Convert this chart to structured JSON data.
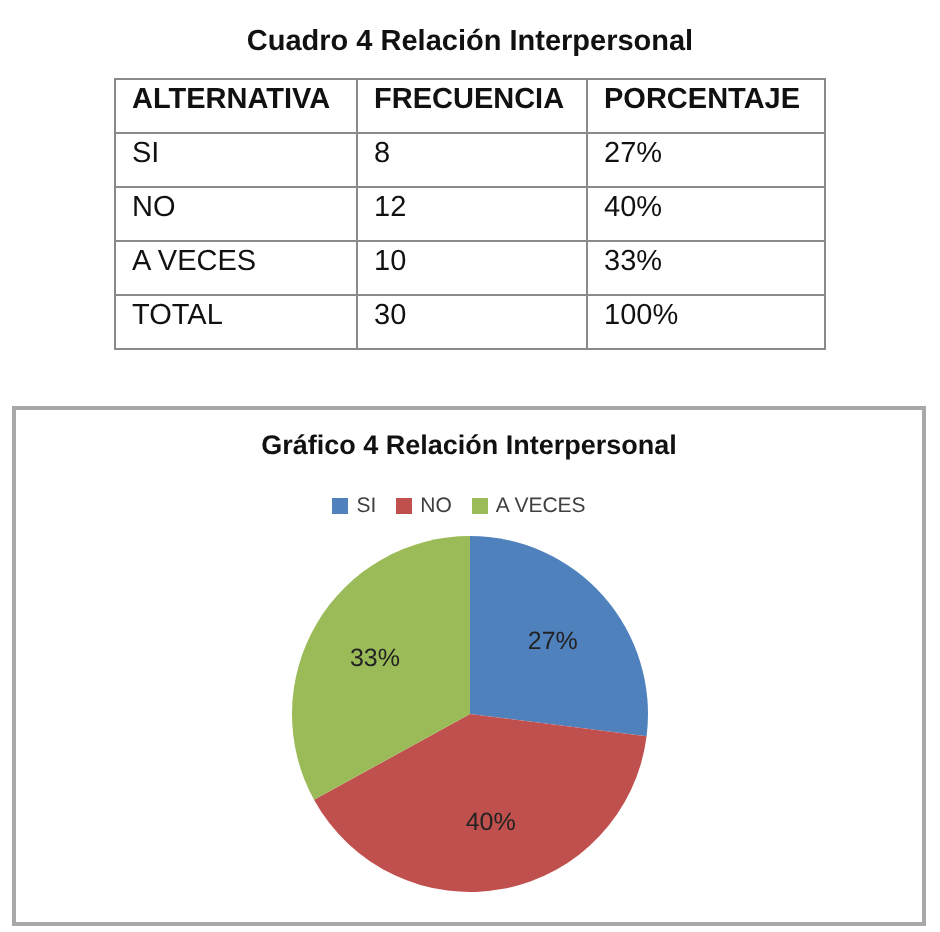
{
  "chart_data": [
    {
      "type": "other",
      "title": "Cuadro 4 Relación Interpersonal",
      "xlabel": "ALTERNATIVA",
      "categories": [
        "SI",
        "NO",
        "A VECES",
        "TOTAL"
      ],
      "data_labels": true,
      "series": [
        {
          "name": "FRECUENCIA",
          "values": [
            8,
            12,
            10,
            30
          ]
        },
        {
          "name": "PORCENTAJE",
          "values": [
            27,
            40,
            33,
            100
          ],
          "value_labels": [
            "27%",
            "40%",
            "33%",
            "100%"
          ]
        }
      ]
    },
    {
      "type": "pie",
      "title": "Gráfico 4 Relación Interpersonal",
      "categories": [
        "SI",
        "NO",
        "A VECES"
      ],
      "values": [
        27,
        40,
        33
      ],
      "colors": [
        "#4f81bd",
        "#c0504d",
        "#9bbb59"
      ],
      "value_labels": [
        "27%",
        "40%",
        "33%"
      ],
      "legend": "top"
    }
  ]
}
